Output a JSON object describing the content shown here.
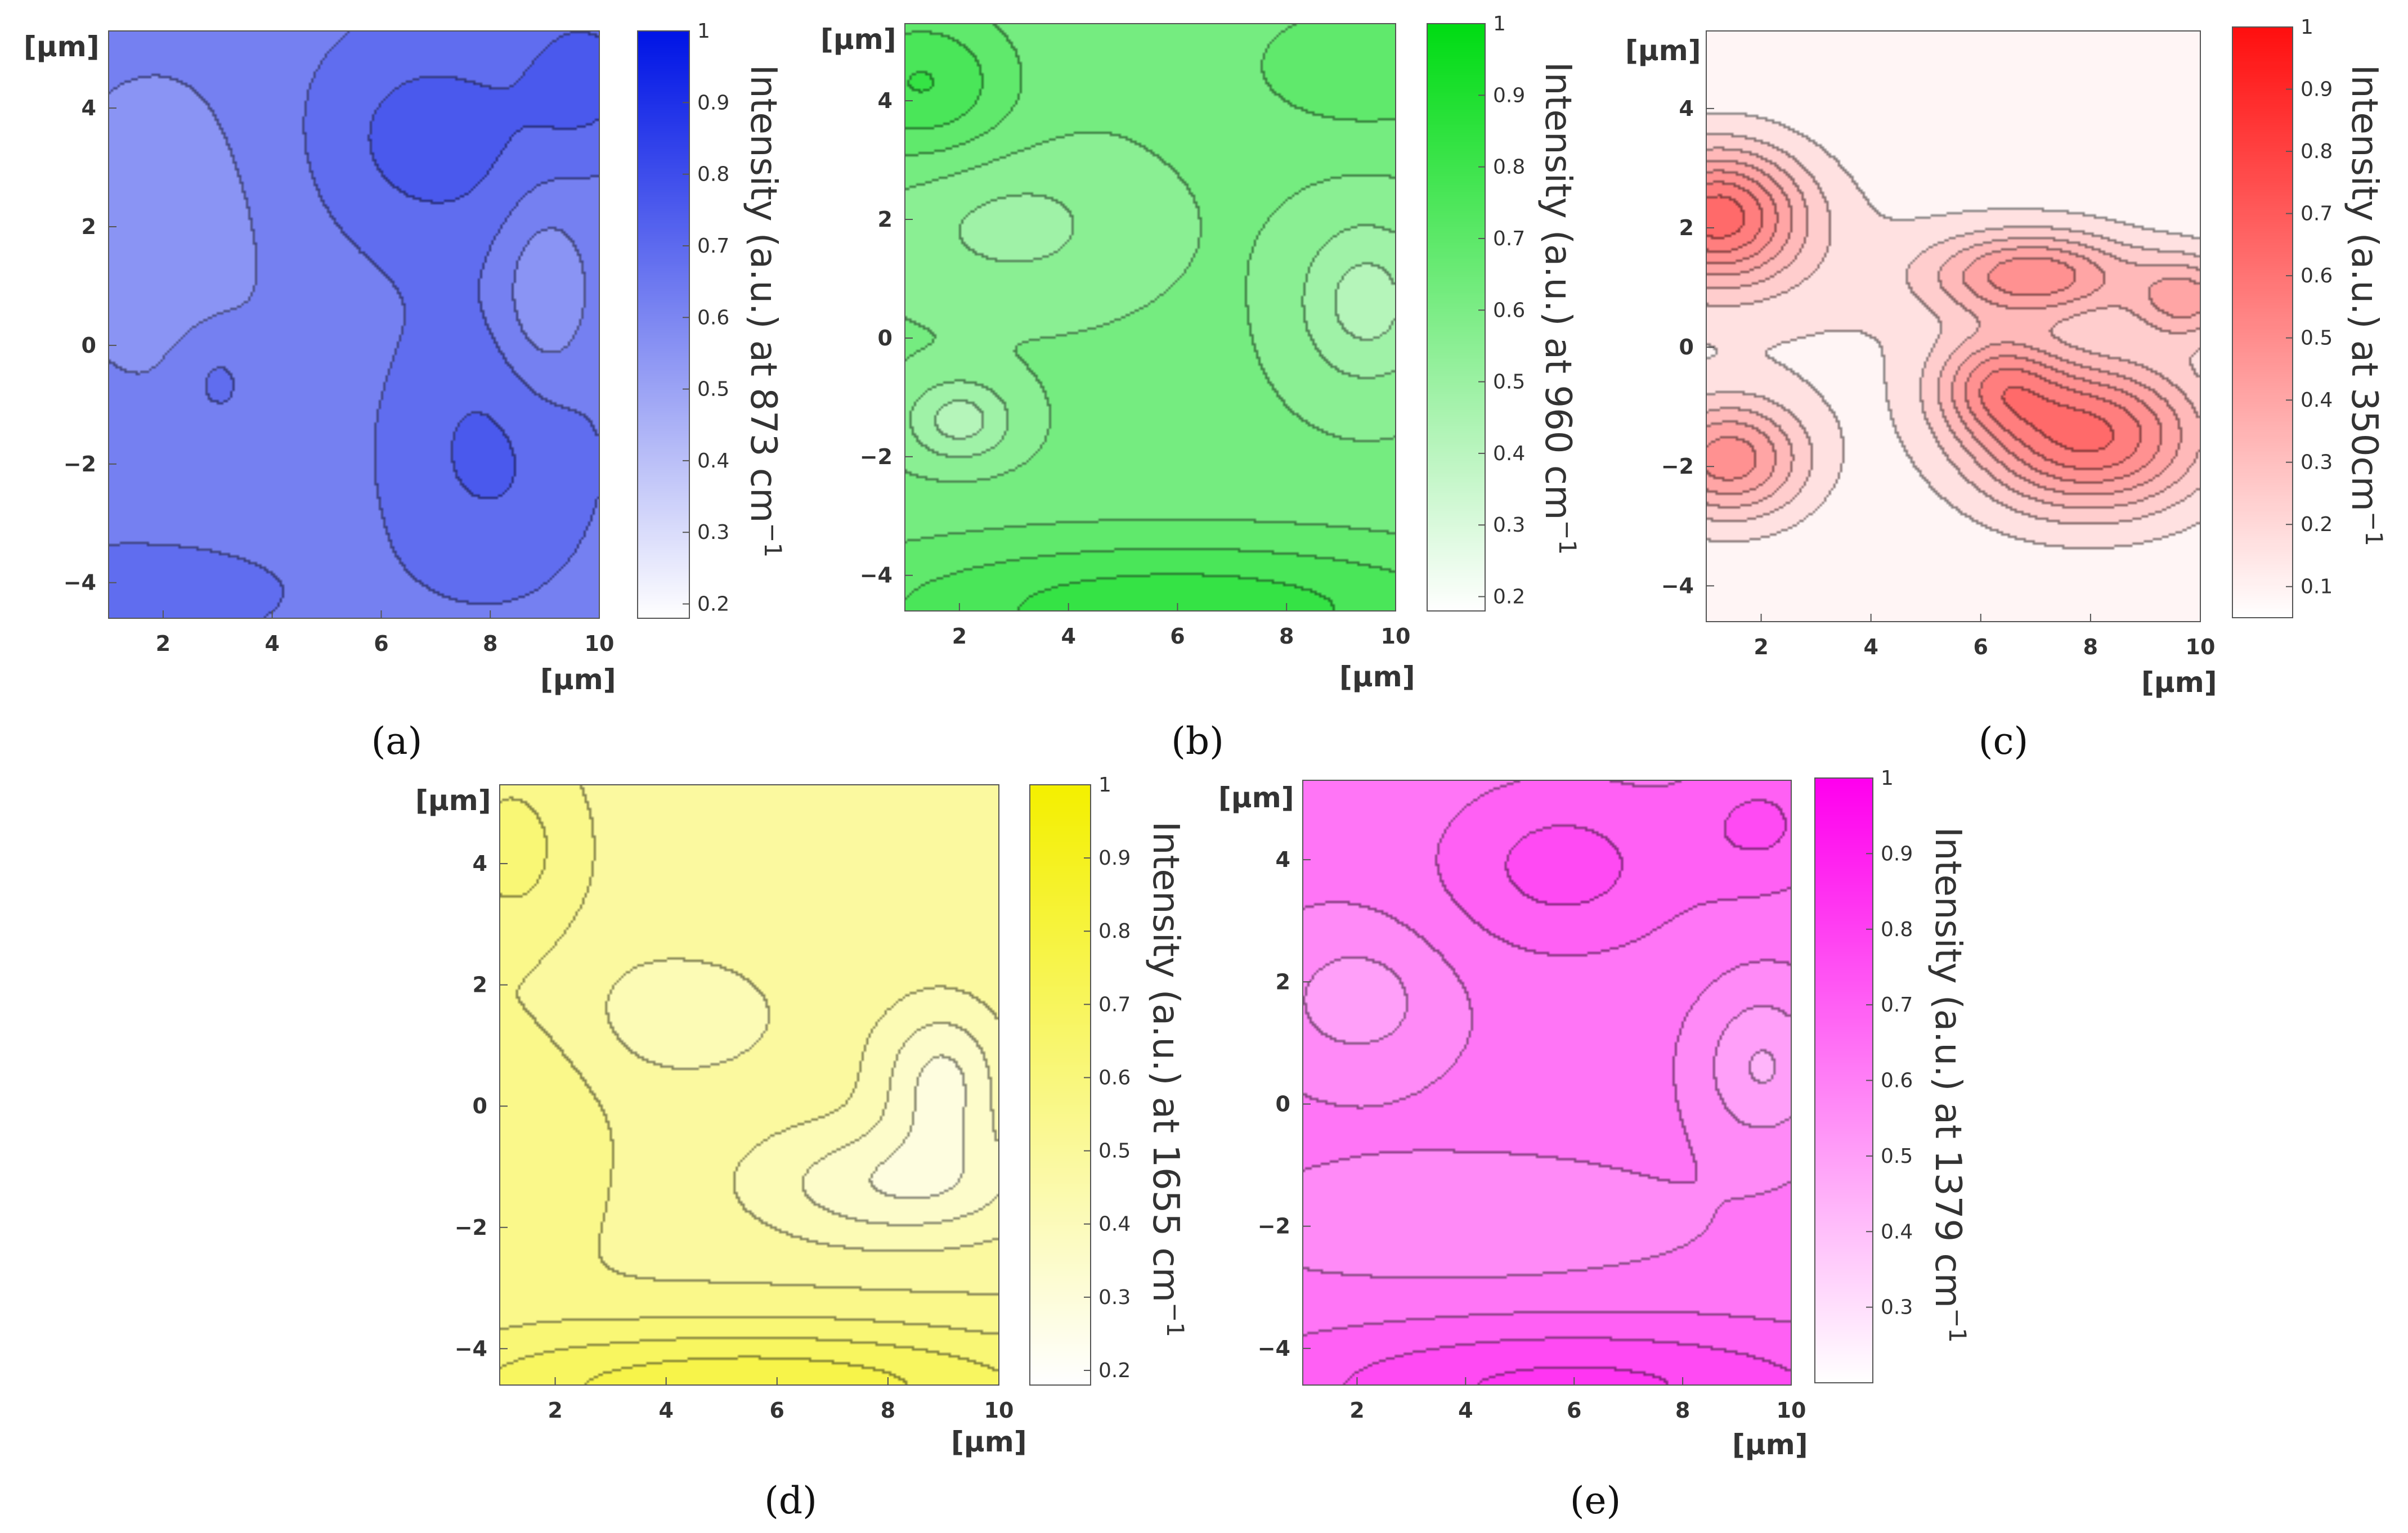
{
  "chart_data": [
    {
      "type": "heatmap",
      "panel": "(a)",
      "colormap": "white-to-blue",
      "max_color": "#0015e6",
      "xlabel": "[µm]",
      "ylabel": "[µm]",
      "xlim": [
        1,
        10
      ],
      "ylim": [
        -4.6,
        5.3
      ],
      "x_ticks": [
        "2",
        "4",
        "6",
        "8",
        "10"
      ],
      "y_ticks": [
        "4",
        "2",
        "0",
        "−2",
        "−4"
      ],
      "colorbar_label": "Intensity (a.u.) at 873 cm",
      "colorbar_exponent": "−1",
      "colorbar_range": [
        0.18,
        1
      ],
      "colorbar_ticks": [
        "1",
        "0.9",
        "0.8",
        "0.7",
        "0.6",
        "0.5",
        "0.4",
        "0.3",
        "0.2"
      ],
      "base_level": 0.62,
      "blobs": [
        {
          "x": 7.0,
          "y": 3.5,
          "sx": 1.7,
          "sy": 1.4,
          "a": 0.14
        },
        {
          "x": 9.8,
          "y": 4.6,
          "sx": 0.8,
          "sy": 0.9,
          "a": 0.12
        },
        {
          "x": 8.0,
          "y": -1.8,
          "sx": 1.4,
          "sy": 1.7,
          "a": 0.12
        },
        {
          "x": 1.5,
          "y": -4.2,
          "sx": 2.2,
          "sy": 0.7,
          "a": 0.08
        },
        {
          "x": 9.0,
          "y": 0.8,
          "sx": 0.6,
          "sy": 1.2,
          "a": -0.12
        },
        {
          "x": 2.0,
          "y": 2.0,
          "sx": 1.6,
          "sy": 2.0,
          "a": -0.07
        },
        {
          "x": 3.0,
          "y": -0.6,
          "sx": 0.5,
          "sy": 0.6,
          "a": 0.07
        }
      ]
    },
    {
      "type": "heatmap",
      "panel": "(b)",
      "colormap": "white-to-green",
      "max_color": "#00dc14",
      "xlabel": "[µm]",
      "ylabel": "[µm]",
      "xlim": [
        1,
        10
      ],
      "ylim": [
        -4.6,
        5.3
      ],
      "x_ticks": [
        "2",
        "4",
        "6",
        "8",
        "10"
      ],
      "y_ticks": [
        "4",
        "2",
        "0",
        "−2",
        "−4"
      ],
      "colorbar_label": "Intensity (a.u.) at 960 cm",
      "colorbar_exponent": "−1",
      "colorbar_range": [
        0.18,
        1
      ],
      "colorbar_ticks": [
        "1",
        "0.9",
        "0.8",
        "0.7",
        "0.6",
        "0.5",
        "0.4",
        "0.3",
        "0.2"
      ],
      "base_level": 0.6,
      "blobs": [
        {
          "x": 1.3,
          "y": 4.3,
          "sx": 1.2,
          "sy": 0.9,
          "a": 0.2
        },
        {
          "x": 9.5,
          "y": 4.6,
          "sx": 1.6,
          "sy": 0.8,
          "a": 0.12
        },
        {
          "x": 6.0,
          "y": -4.6,
          "sx": 4.5,
          "sy": 0.9,
          "a": 0.24
        },
        {
          "x": 3.0,
          "y": 1.9,
          "sx": 1.6,
          "sy": 0.9,
          "a": -0.1
        },
        {
          "x": 9.5,
          "y": 0.6,
          "sx": 0.9,
          "sy": 1.0,
          "a": -0.18
        },
        {
          "x": 2.0,
          "y": -1.4,
          "sx": 0.7,
          "sy": 0.5,
          "a": -0.18
        }
      ]
    },
    {
      "type": "heatmap",
      "panel": "(c)",
      "colormap": "white-to-red",
      "max_color": "#ff1010",
      "xlabel": "[µm]",
      "ylabel": "[µm]",
      "xlim": [
        1,
        10
      ],
      "ylim": [
        -4.6,
        5.3
      ],
      "x_ticks": [
        "2",
        "4",
        "6",
        "8",
        "10"
      ],
      "y_ticks": [
        "4",
        "2",
        "0",
        "−2",
        "−4"
      ],
      "colorbar_label": "Intensity (a.u.) at 350cm",
      "colorbar_exponent": "−1",
      "colorbar_range": [
        0.05,
        1
      ],
      "colorbar_ticks": [
        "1",
        "0.9",
        "0.8",
        "0.7",
        "0.6",
        "0.5",
        "0.4",
        "0.3",
        "0.2",
        "0.1"
      ],
      "base_level": 0.07,
      "blobs": [
        {
          "x": 1.2,
          "y": 2.2,
          "sx": 1.1,
          "sy": 0.8,
          "a": 0.55
        },
        {
          "x": 7.0,
          "y": 1.2,
          "sx": 1.3,
          "sy": 0.5,
          "a": 0.4
        },
        {
          "x": 8.0,
          "y": -1.5,
          "sx": 1.5,
          "sy": 0.9,
          "a": 0.55
        },
        {
          "x": 6.3,
          "y": -0.6,
          "sx": 0.8,
          "sy": 0.6,
          "a": 0.3
        },
        {
          "x": 1.4,
          "y": -1.9,
          "sx": 1.0,
          "sy": 0.7,
          "a": 0.42
        },
        {
          "x": 9.8,
          "y": 0.8,
          "sx": 0.7,
          "sy": 0.5,
          "a": 0.3
        },
        {
          "x": 3.5,
          "y": 1.0,
          "sx": 3.5,
          "sy": 1.4,
          "a": 0.06
        }
      ]
    },
    {
      "type": "heatmap",
      "panel": "(d)",
      "colormap": "white-to-yellow",
      "max_color": "#f4f000",
      "xlabel": "[µm]",
      "ylabel": "[µm]",
      "xlim": [
        1,
        10
      ],
      "ylim": [
        -4.6,
        5.3
      ],
      "x_ticks": [
        "2",
        "4",
        "6",
        "8",
        "10"
      ],
      "y_ticks": [
        "4",
        "2",
        "0",
        "−2",
        "−4"
      ],
      "colorbar_label": "Intensity (a.u.)  at 1655 cm",
      "colorbar_exponent": "−1",
      "colorbar_range": [
        0.18,
        1
      ],
      "colorbar_ticks": [
        "1",
        "0.9",
        "0.8",
        "0.7",
        "0.6",
        "0.5",
        "0.4",
        "0.3",
        "0.2"
      ],
      "base_level": 0.5,
      "blobs": [
        {
          "x": 1.2,
          "y": 4.3,
          "sx": 0.8,
          "sy": 1.0,
          "a": 0.12
        },
        {
          "x": 5.5,
          "y": -4.7,
          "sx": 4.5,
          "sy": 0.8,
          "a": 0.28
        },
        {
          "x": 1.6,
          "y": -0.2,
          "sx": 1.0,
          "sy": 1.8,
          "a": 0.08
        },
        {
          "x": 8.2,
          "y": -1.3,
          "sx": 1.8,
          "sy": 0.7,
          "a": -0.18
        },
        {
          "x": 9.0,
          "y": 0.4,
          "sx": 0.8,
          "sy": 0.9,
          "a": -0.2
        },
        {
          "x": 4.0,
          "y": 1.5,
          "sx": 1.8,
          "sy": 0.9,
          "a": -0.08
        }
      ]
    },
    {
      "type": "heatmap",
      "panel": "(e)",
      "colormap": "white-to-magenta",
      "max_color": "#ff00ee",
      "xlabel": "[µm]",
      "ylabel": "[µm]",
      "xlim": [
        1,
        10
      ],
      "ylim": [
        -4.6,
        5.3
      ],
      "x_ticks": [
        "2",
        "4",
        "6",
        "8",
        "10"
      ],
      "y_ticks": [
        "4",
        "2",
        "0",
        "−2",
        "−4"
      ],
      "colorbar_label": "Intensity (a.u.) at 1379 cm",
      "colorbar_exponent": "−1",
      "colorbar_range": [
        0.2,
        1
      ],
      "colorbar_ticks": [
        "1",
        "0.9",
        "0.8",
        "0.7",
        "0.6",
        "0.5",
        "0.4",
        "0.3"
      ],
      "base_level": 0.62,
      "blobs": [
        {
          "x": 5.8,
          "y": 3.9,
          "sx": 1.6,
          "sy": 1.0,
          "a": 0.14
        },
        {
          "x": 9.5,
          "y": 4.6,
          "sx": 1.0,
          "sy": 0.8,
          "a": 0.12
        },
        {
          "x": 6.0,
          "y": -4.7,
          "sx": 4.0,
          "sy": 0.8,
          "a": 0.2
        },
        {
          "x": 2.0,
          "y": 1.7,
          "sx": 1.2,
          "sy": 0.9,
          "a": -0.12
        },
        {
          "x": 9.5,
          "y": 0.6,
          "sx": 0.8,
          "sy": 0.9,
          "a": -0.16
        },
        {
          "x": 4.0,
          "y": -2.0,
          "sx": 3.0,
          "sy": 0.8,
          "a": -0.06
        }
      ]
    }
  ]
}
